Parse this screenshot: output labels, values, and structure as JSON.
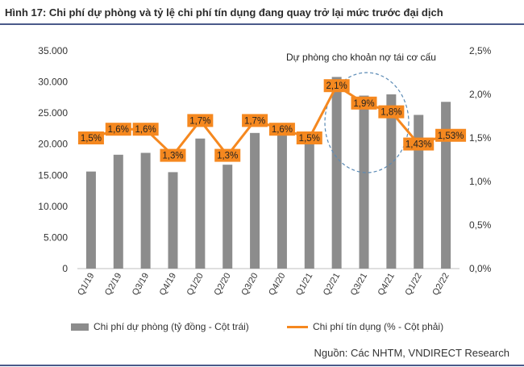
{
  "figure_title": "Hình 17: Chi phí dự phòng và tỷ lệ chi phí tín dụng đang quay trở lại mức trước đại dịch",
  "source": "Nguồn: Các NHTM, VNDIRECT Research",
  "annotation": "Dự phòng cho khoản nợ tái cơ cấu",
  "colors": {
    "bar": "#8c8c8c",
    "line": "#f5881f",
    "label_bg": "#f5881f",
    "label_text": "#222222",
    "ellipse": "#5a8ab5",
    "title_rule": "#4a5a8a"
  },
  "chart_data": {
    "type": "bar",
    "categories": [
      "Q1/19",
      "Q2/19",
      "Q3/19",
      "Q4/19",
      "Q1/20",
      "Q2/20",
      "Q3/20",
      "Q4/20",
      "Q1/21",
      "Q2/21",
      "Q3/21",
      "Q4/21",
      "Q1/22",
      "Q2/22"
    ],
    "left_axis": {
      "ylim": [
        0,
        35000
      ],
      "ticks": [
        "0",
        "5.000",
        "10.000",
        "15.000",
        "20.000",
        "25.000",
        "30.000",
        "35.000"
      ]
    },
    "right_axis": {
      "ylim": [
        0,
        2.5
      ],
      "ticks": [
        "0,0%",
        "0,5%",
        "1,0%",
        "1,5%",
        "2,0%",
        "2,5%"
      ]
    },
    "grid": false,
    "legend_position": "bottom",
    "series": [
      {
        "name": "Chi phí dự phòng (tỷ đồng - Cột trái)",
        "type": "bar",
        "axis": "left",
        "values": [
          15600,
          18300,
          18600,
          15500,
          20900,
          16700,
          21800,
          21400,
          21100,
          30800,
          27800,
          28000,
          24700,
          26800
        ]
      },
      {
        "name": "Chi phí tín dụng (% - Cột phải)",
        "type": "line",
        "axis": "right",
        "values": [
          1.5,
          1.6,
          1.6,
          1.3,
          1.7,
          1.3,
          1.7,
          1.6,
          1.5,
          2.1,
          1.9,
          1.8,
          1.43,
          1.53
        ],
        "labels": [
          "1,5%",
          "1,6%",
          "1,6%",
          "1,3%",
          "1,7%",
          "1,3%",
          "1,7%",
          "1,6%",
          "1,5%",
          "2,1%",
          "1,9%",
          "1,8%",
          "1,43%",
          "1,53%"
        ]
      }
    ]
  }
}
